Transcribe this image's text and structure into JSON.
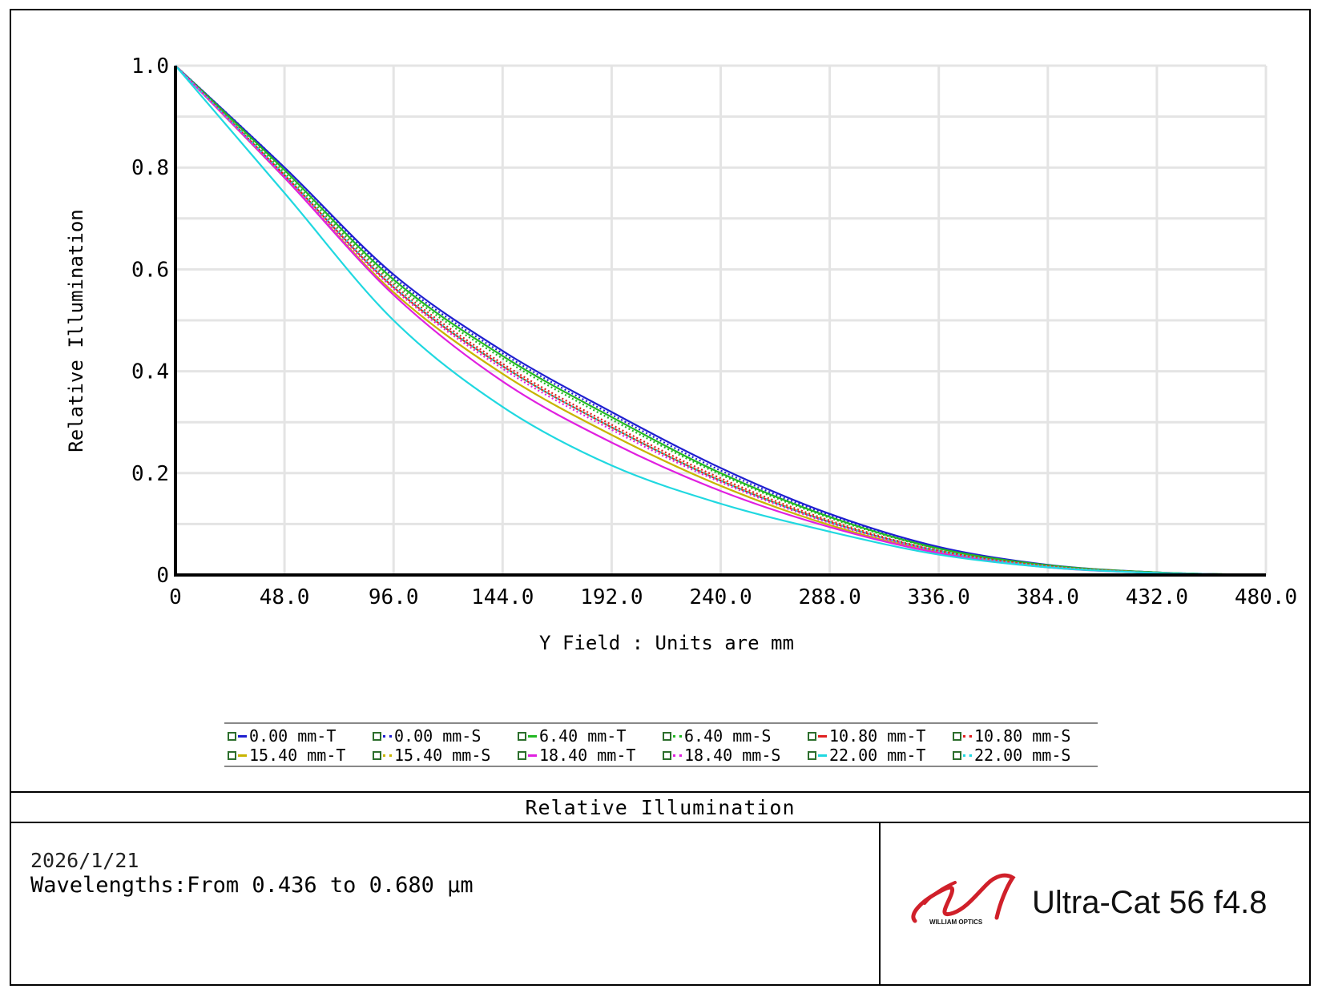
{
  "chart_data": {
    "type": "line",
    "title": "",
    "xlabel": "Y Field : Units are mm",
    "ylabel": "Relative Illumination",
    "xlim": [
      0,
      480
    ],
    "ylim": [
      0,
      1.0
    ],
    "x_ticks": [
      "0",
      "48.0",
      "96.0",
      "144.0",
      "192.0",
      "240.0",
      "288.0",
      "336.0",
      "384.0",
      "432.0",
      "480.0"
    ],
    "y_ticks": [
      "0",
      "0.2",
      "0.4",
      "0.6",
      "0.8",
      "1.0"
    ],
    "grid": true,
    "x": [
      0,
      48,
      96,
      144,
      192,
      240,
      288,
      336,
      384,
      432,
      480
    ],
    "series": [
      {
        "name": "0.00 mm-T",
        "color": "#1f1fd0",
        "style": "solid",
        "values": [
          1.0,
          0.8,
          0.59,
          0.44,
          0.32,
          0.21,
          0.12,
          0.055,
          0.02,
          0.005,
          0
        ]
      },
      {
        "name": "0.00 mm-S",
        "color": "#1f1fd0",
        "style": "dotted",
        "values": [
          1.0,
          0.8,
          0.585,
          0.435,
          0.315,
          0.205,
          0.117,
          0.053,
          0.019,
          0.005,
          0
        ]
      },
      {
        "name": "6.40 mm-T",
        "color": "#22b822",
        "style": "solid",
        "values": [
          1.0,
          0.795,
          0.58,
          0.43,
          0.31,
          0.2,
          0.114,
          0.052,
          0.019,
          0.005,
          0
        ]
      },
      {
        "name": "6.40 mm-S",
        "color": "#22b822",
        "style": "dotted",
        "values": [
          1.0,
          0.79,
          0.575,
          0.425,
          0.305,
          0.197,
          0.112,
          0.051,
          0.018,
          0.005,
          0
        ]
      },
      {
        "name": "10.80 mm-T",
        "color": "#e02020",
        "style": "solid",
        "values": [
          1.0,
          0.785,
          0.565,
          0.41,
          0.29,
          0.185,
          0.104,
          0.047,
          0.017,
          0.004,
          0
        ]
      },
      {
        "name": "10.80 mm-S",
        "color": "#e02020",
        "style": "dotted",
        "values": [
          1.0,
          0.785,
          0.57,
          0.415,
          0.295,
          0.19,
          0.107,
          0.048,
          0.017,
          0.004,
          0
        ]
      },
      {
        "name": "15.40 mm-T",
        "color": "#c8b400",
        "style": "solid",
        "values": [
          1.0,
          0.78,
          0.555,
          0.395,
          0.275,
          0.175,
          0.098,
          0.044,
          0.016,
          0.004,
          0
        ]
      },
      {
        "name": "15.40 mm-S",
        "color": "#c8b400",
        "style": "dotted",
        "values": [
          1.0,
          0.783,
          0.565,
          0.41,
          0.29,
          0.186,
          0.105,
          0.047,
          0.017,
          0.004,
          0
        ]
      },
      {
        "name": "18.40 mm-T",
        "color": "#e020e0",
        "style": "solid",
        "values": [
          1.0,
          0.78,
          0.55,
          0.38,
          0.26,
          0.165,
          0.094,
          0.043,
          0.015,
          0.004,
          0
        ]
      },
      {
        "name": "18.40 mm-S",
        "color": "#e020e0",
        "style": "dotted",
        "values": [
          1.0,
          0.782,
          0.562,
          0.405,
          0.285,
          0.182,
          0.102,
          0.046,
          0.016,
          0.004,
          0
        ]
      },
      {
        "name": "22.00 mm-T",
        "color": "#20d8e0",
        "style": "solid",
        "values": [
          1.0,
          0.75,
          0.5,
          0.33,
          0.215,
          0.14,
          0.085,
          0.04,
          0.015,
          0.004,
          0
        ]
      },
      {
        "name": "22.00 mm-S",
        "color": "#20d8e0",
        "style": "dotted",
        "values": [
          1.0,
          0.785,
          0.567,
          0.41,
          0.29,
          0.185,
          0.104,
          0.047,
          0.017,
          0.004,
          0
        ]
      }
    ]
  },
  "legend_sym_color": "#2c6e2c",
  "footer": {
    "title": "Relative Illumination",
    "date": "2026/1/21",
    "wavelengths": "Wavelengths:From 0.436 to 0.680 µm",
    "product": "Ultra-Cat 56 f4.8",
    "logo_text": "WILLIAM OPTICS",
    "logo_color": "#d0202a"
  }
}
